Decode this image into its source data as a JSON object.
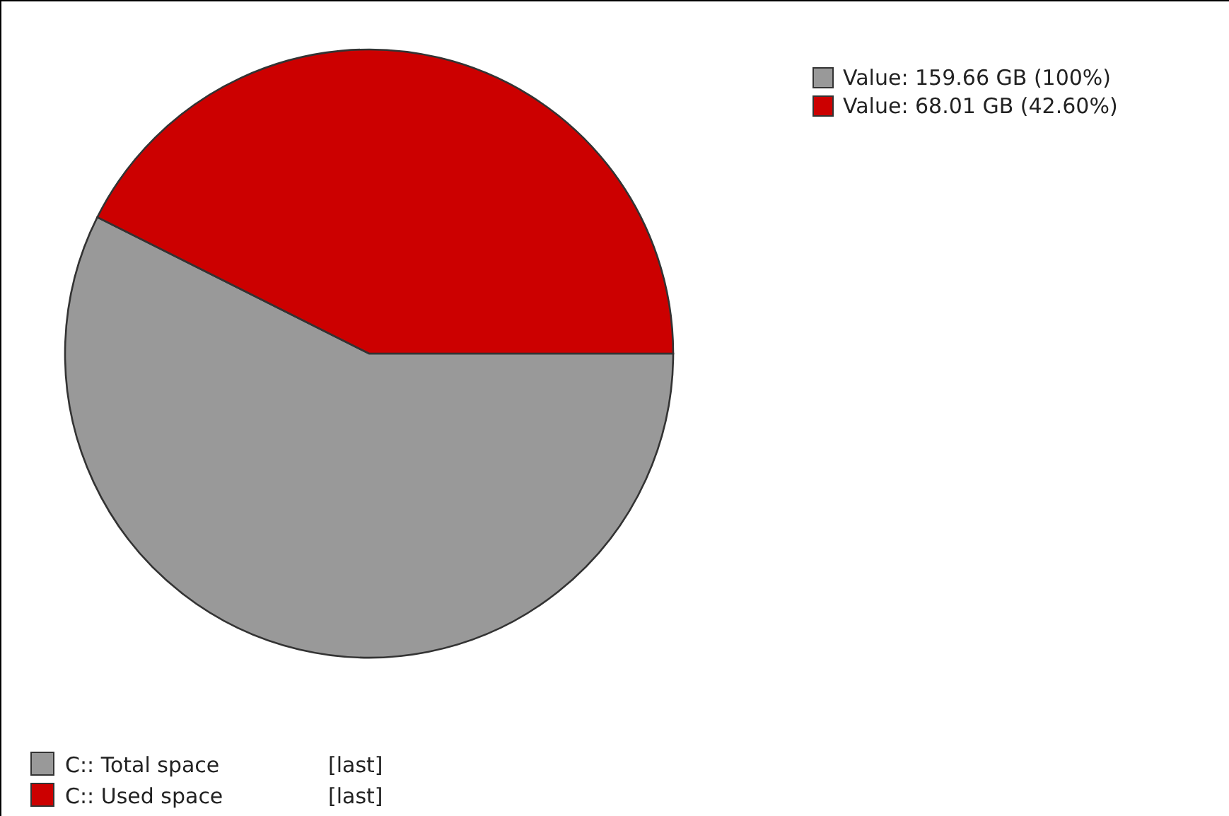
{
  "chart_data": {
    "type": "pie",
    "categories": [
      "C:: Total space",
      "C:: Used space"
    ],
    "values": [
      57.4,
      42.6
    ],
    "colors": [
      "#999999",
      "#cc0000"
    ],
    "annotations": [
      "Value: 159.66 GB (100%)",
      "Value: 68.01 GB (42.60%)",
      "[last]",
      "[last]"
    ],
    "legend": "bottom left"
  }
}
